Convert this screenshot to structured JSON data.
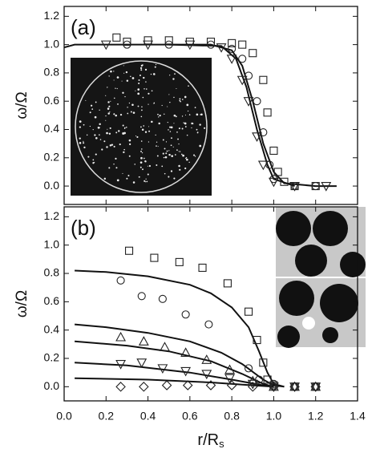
{
  "chart_data": [
    {
      "type": "scatter",
      "panel_label": "(a)",
      "ylabel": "ω/Ω",
      "xlim": [
        0,
        1.4
      ],
      "ylim": [
        -0.13,
        1.27
      ],
      "xticks": [
        {
          "value": 0,
          "label": "0.0"
        },
        0.2,
        0.4,
        0.6,
        0.8,
        {
          "value": 1,
          "label": "1.0"
        },
        1.2,
        1.4
      ],
      "yticks": [
        {
          "value": 0,
          "label": "0.0"
        },
        0.2,
        0.4,
        0.6,
        0.8,
        {
          "value": 1,
          "label": "1.0"
        },
        1.2
      ],
      "series": [
        {
          "marker": "square",
          "x": [
            0.25,
            0.3,
            0.4,
            0.5,
            0.6,
            0.7,
            0.8,
            0.85,
            0.9,
            0.95,
            0.97,
            1.0,
            1.02,
            1.05,
            1.1,
            1.2
          ],
          "values": [
            1.05,
            1.02,
            1.03,
            1.03,
            1.02,
            1.02,
            1.01,
            1.0,
            0.94,
            0.75,
            0.52,
            0.25,
            0.1,
            0.03,
            0,
            0
          ]
        },
        {
          "marker": "circle",
          "x": [
            0.3,
            0.5,
            0.7,
            0.8,
            0.85,
            0.88,
            0.92,
            0.95,
            0.98,
            1.0,
            1.1,
            1.2
          ],
          "values": [
            1.0,
            1.0,
            1.0,
            0.97,
            0.9,
            0.78,
            0.6,
            0.38,
            0.15,
            0.05,
            0,
            0
          ]
        },
        {
          "marker": "triangle-down",
          "x": [
            0.2,
            0.4,
            0.6,
            0.75,
            0.8,
            0.85,
            0.88,
            0.92,
            0.95,
            1.0,
            1.1,
            1.25
          ],
          "values": [
            1.0,
            1.0,
            1.0,
            0.98,
            0.9,
            0.75,
            0.6,
            0.35,
            0.15,
            0.03,
            0,
            0
          ]
        }
      ],
      "lines": [
        {
          "x": [
            0,
            0.05,
            0.3,
            0.7,
            0.8,
            0.85,
            0.9,
            0.95,
            1.0,
            1.05,
            1.2,
            1.3
          ],
          "values": [
            0.98,
            1.0,
            1.0,
            1.0,
            0.96,
            0.85,
            0.6,
            0.3,
            0.1,
            0.02,
            0,
            0
          ]
        },
        {
          "x": [
            0.5,
            0.75,
            0.82,
            0.87,
            0.92,
            0.97,
            1.0,
            1.1
          ],
          "values": [
            1.0,
            0.99,
            0.9,
            0.7,
            0.4,
            0.15,
            0.05,
            0
          ]
        }
      ]
    },
    {
      "type": "scatter",
      "panel_label": "(b)",
      "ylabel": "ω/Ω",
      "xlabel": "r/R",
      "xlabel_sub": "s",
      "xlim": [
        0,
        1.4
      ],
      "ylim": [
        -0.1,
        1.27
      ],
      "xticks": [
        {
          "value": 0,
          "label": "0.0"
        },
        0.2,
        0.4,
        0.6,
        0.8,
        {
          "value": 1,
          "label": "1.0"
        },
        1.2,
        1.4
      ],
      "yticks": [
        {
          "value": 0,
          "label": "0.0"
        },
        0.2,
        0.4,
        0.6,
        0.8,
        {
          "value": 1,
          "label": "1.0"
        },
        1.2
      ],
      "series": [
        {
          "marker": "square",
          "x": [
            0.31,
            0.43,
            0.55,
            0.66,
            0.78,
            0.88,
            0.92,
            0.95,
            0.97,
            1.0,
            1.1,
            1.2
          ],
          "values": [
            0.96,
            0.91,
            0.88,
            0.84,
            0.73,
            0.53,
            0.33,
            0.17,
            0.05,
            0.01,
            0,
            0
          ]
        },
        {
          "marker": "circle",
          "x": [
            0.27,
            0.37,
            0.47,
            0.58,
            0.69,
            0.88,
            0.93,
            1.0,
            1.1,
            1.2
          ],
          "values": [
            0.75,
            0.64,
            0.62,
            0.51,
            0.44,
            0.13,
            0.05,
            0.02,
            0,
            0
          ]
        },
        {
          "marker": "triangle-up",
          "x": [
            0.27,
            0.38,
            0.48,
            0.58,
            0.68,
            0.79,
            0.9,
            1.0,
            1.1,
            1.2
          ],
          "values": [
            0.35,
            0.32,
            0.28,
            0.24,
            0.19,
            0.12,
            0.04,
            0,
            0,
            0
          ]
        },
        {
          "marker": "triangle-down",
          "x": [
            0.27,
            0.37,
            0.47,
            0.58,
            0.68,
            0.79,
            0.9,
            1.0,
            1.1,
            1.2
          ],
          "values": [
            0.16,
            0.17,
            0.13,
            0.11,
            0.09,
            0.06,
            0.02,
            0,
            0,
            0
          ]
        },
        {
          "marker": "diamond",
          "x": [
            0.27,
            0.38,
            0.49,
            0.59,
            0.7,
            0.8,
            0.9,
            1.0,
            1.1,
            1.2
          ],
          "values": [
            0,
            0,
            0.01,
            0.01,
            0.01,
            0.01,
            0,
            0,
            0,
            0
          ]
        }
      ],
      "lines": [
        {
          "x": [
            0.05,
            0.2,
            0.4,
            0.6,
            0.7,
            0.8,
            0.88,
            0.93,
            0.97,
            1.0,
            1.05
          ],
          "values": [
            0.82,
            0.81,
            0.78,
            0.72,
            0.66,
            0.56,
            0.42,
            0.25,
            0.1,
            0.02,
            0
          ]
        },
        {
          "x": [
            0.05,
            0.2,
            0.4,
            0.6,
            0.75,
            0.85,
            0.95,
            1.0,
            1.05
          ],
          "values": [
            0.44,
            0.42,
            0.38,
            0.32,
            0.24,
            0.16,
            0.05,
            0.01,
            0
          ]
        },
        {
          "x": [
            0.05,
            0.3,
            0.5,
            0.7,
            0.85,
            0.95,
            1.0
          ],
          "values": [
            0.32,
            0.29,
            0.25,
            0.18,
            0.09,
            0.02,
            0
          ]
        },
        {
          "x": [
            0.05,
            0.3,
            0.6,
            0.8,
            0.95,
            1.0
          ],
          "values": [
            0.17,
            0.15,
            0.1,
            0.05,
            0.01,
            0
          ]
        },
        {
          "x": [
            0.05,
            0.4,
            0.7,
            0.9,
            1.0
          ],
          "values": [
            0.06,
            0.05,
            0.03,
            0.01,
            0
          ]
        }
      ]
    }
  ]
}
